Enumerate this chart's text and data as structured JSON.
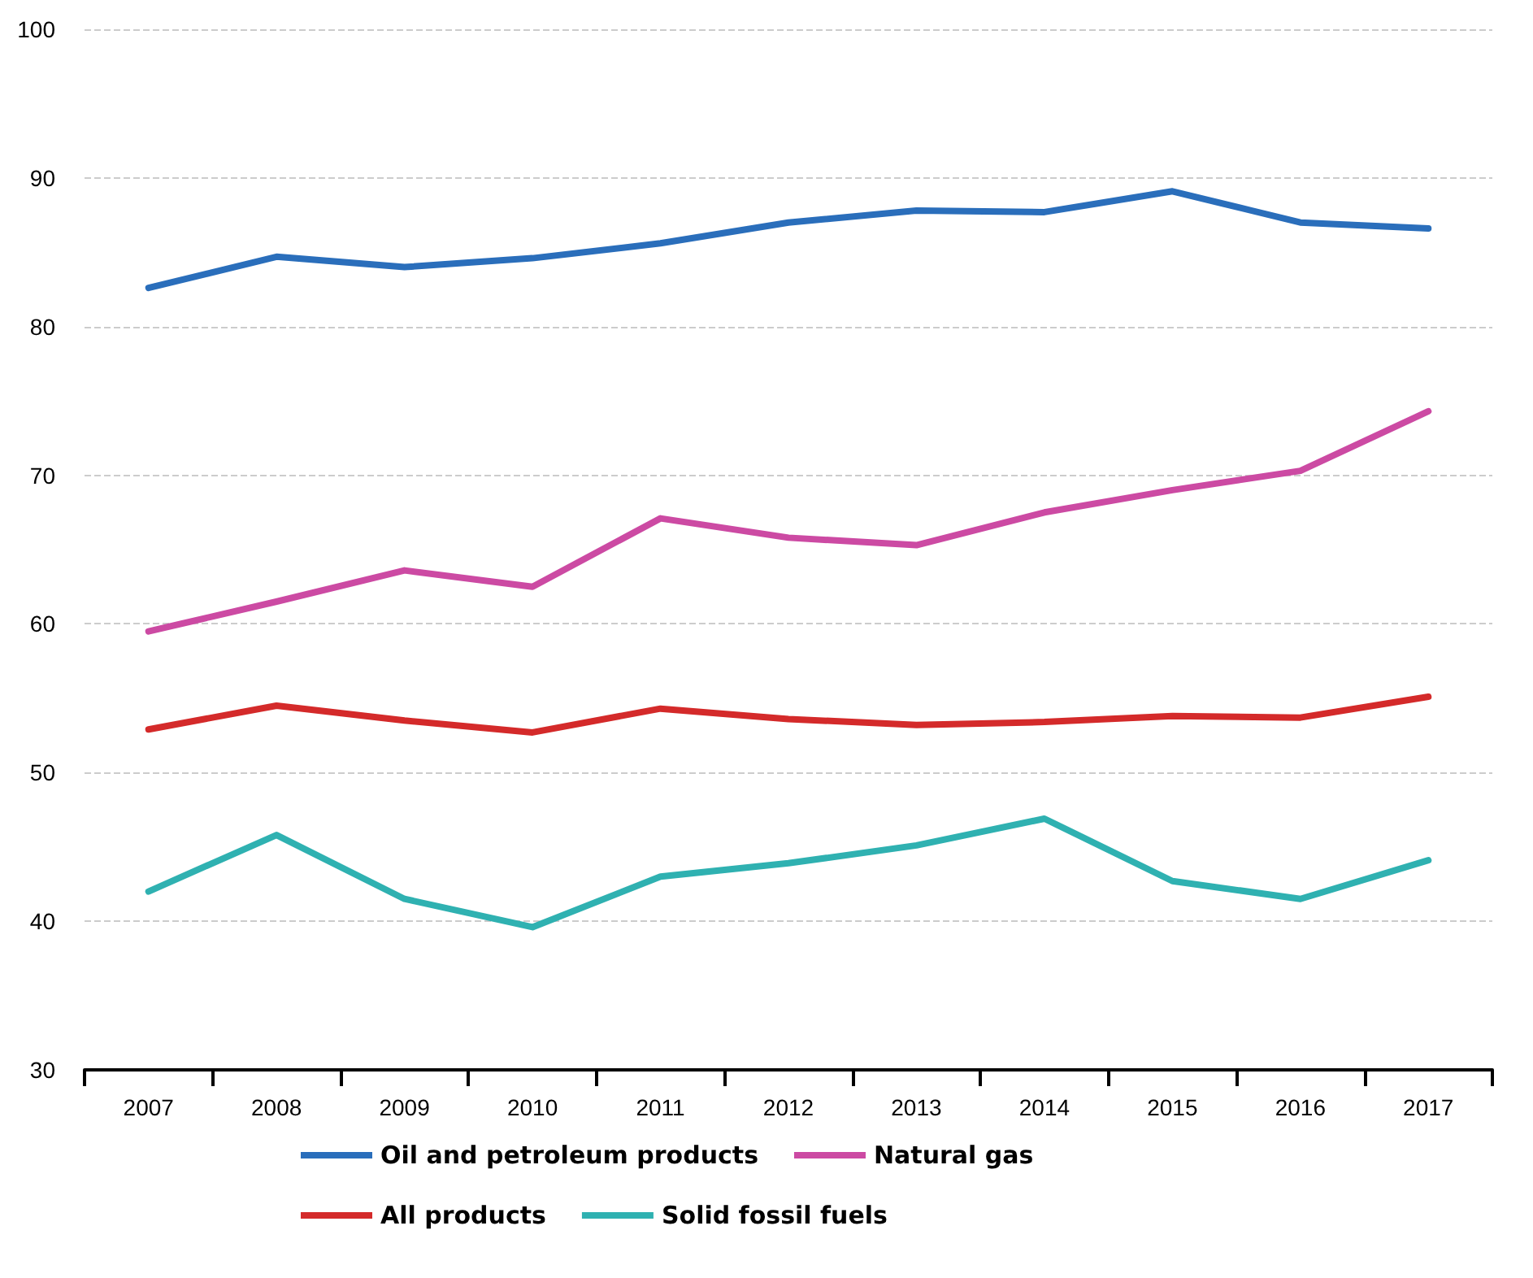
{
  "chart_data": {
    "type": "line",
    "categories": [
      "2007",
      "2008",
      "2009",
      "2010",
      "2011",
      "2012",
      "2013",
      "2014",
      "2015",
      "2016",
      "2017"
    ],
    "series": [
      {
        "name": "Oil and petroleum products",
        "color": "#2a6ebb",
        "values": [
          82.6,
          84.7,
          84.0,
          84.6,
          85.6,
          87.0,
          87.8,
          87.7,
          89.1,
          87.0,
          86.6
        ]
      },
      {
        "name": "Natural gas",
        "color": "#cc4aa3",
        "values": [
          59.5,
          61.5,
          63.6,
          62.5,
          67.1,
          65.8,
          65.3,
          67.5,
          69.0,
          70.3,
          74.3
        ]
      },
      {
        "name": "All products",
        "color": "#d42a2a",
        "values": [
          52.9,
          54.5,
          53.5,
          52.7,
          54.3,
          53.6,
          53.2,
          53.4,
          53.8,
          53.7,
          55.1
        ]
      },
      {
        "name": "Solid fossil fuels",
        "color": "#2fb1b1",
        "values": [
          42.0,
          45.8,
          41.5,
          39.6,
          43.0,
          43.9,
          45.1,
          46.9,
          42.7,
          41.5,
          44.1
        ]
      }
    ],
    "ylim": [
      30,
      100
    ],
    "yticks": [
      30,
      40,
      50,
      60,
      70,
      80,
      90,
      100
    ],
    "grid": "y",
    "legend": "bottom",
    "marker": "none",
    "line_style": "solid"
  }
}
